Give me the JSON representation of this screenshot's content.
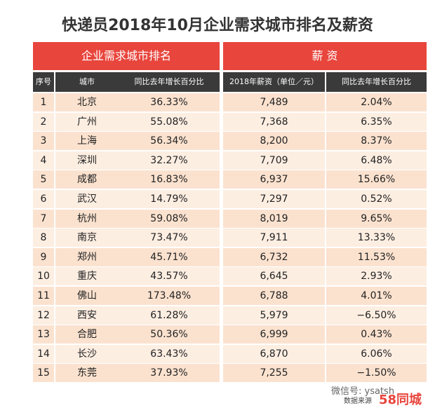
{
  "title": "快递员2018年10月企业需求城市排名及薪资",
  "header": {
    "groups": [
      "企业需求城市排名",
      "薪 资"
    ],
    "columns": [
      "序号",
      "城市",
      "同比去年增长百分比",
      "2018年薪资（单位／元）",
      "同比去年增长百分比"
    ]
  },
  "table": {
    "rows": [
      [
        "1",
        "北京",
        "36.33%",
        "7,489",
        "2.04%"
      ],
      [
        "2",
        "广州",
        "55.08%",
        "7,368",
        "6.35%"
      ],
      [
        "3",
        "上海",
        "56.34%",
        "8,200",
        "8.37%"
      ],
      [
        "4",
        "深圳",
        "32.27%",
        "7,709",
        "6.48%"
      ],
      [
        "5",
        "成都",
        "16.83%",
        "6,937",
        "15.66%"
      ],
      [
        "6",
        "武汉",
        "14.79%",
        "7,297",
        "0.52%"
      ],
      [
        "7",
        "杭州",
        "59.08%",
        "8,019",
        "9.65%"
      ],
      [
        "8",
        "南京",
        "73.47%",
        "7,911",
        "13.33%"
      ],
      [
        "9",
        "郑州",
        "45.71%",
        "6,732",
        "11.53%"
      ],
      [
        "10",
        "重庆",
        "43.57%",
        "6,645",
        "2.93%"
      ],
      [
        "11",
        "佛山",
        "173.48%",
        "6,788",
        "4.01%"
      ],
      [
        "12",
        "西安",
        "61.28%",
        "5,979",
        "−6.50%"
      ],
      [
        "13",
        "合肥",
        "50.36%",
        "6,999",
        "0.43%"
      ],
      [
        "14",
        "长沙",
        "63.43%",
        "6,870",
        "6.06%"
      ],
      [
        "15",
        "东莞",
        "37.93%",
        "7,255",
        "−1.50%"
      ]
    ]
  },
  "footer": {
    "watermark": "微信号: ysatsh",
    "source": "数据来源",
    "brand": "58同城"
  }
}
